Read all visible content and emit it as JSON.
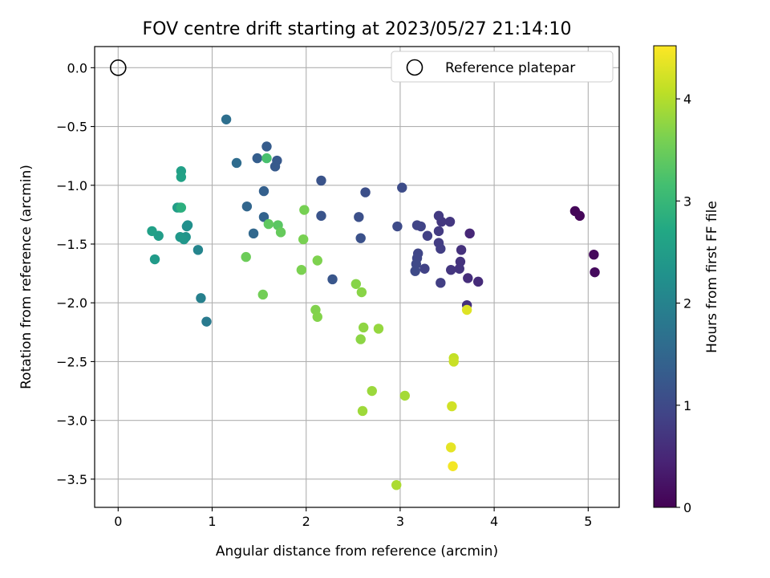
{
  "chart_data": {
    "type": "scatter",
    "title": "FOV centre drift starting at 2023/05/27 21:14:10",
    "xlabel": "Angular distance from reference (arcmin)",
    "ylabel": "Rotation from reference (arcmin)",
    "xlim": [
      -0.25,
      5.33
    ],
    "ylim": [
      -3.74,
      0.18
    ],
    "xticks": [
      0,
      1,
      2,
      3,
      4,
      5
    ],
    "yticks": [
      0.0,
      -0.5,
      -1.0,
      -1.5,
      -2.0,
      -2.5,
      -3.0,
      -3.5
    ],
    "xtick_labels": [
      "0",
      "1",
      "2",
      "3",
      "4",
      "5"
    ],
    "ytick_labels": [
      "0.0",
      "−0.5",
      "−1.0",
      "−1.5",
      "−2.0",
      "−2.5",
      "−3.0",
      "−3.5"
    ],
    "grid": true,
    "colormap": "viridis",
    "colorbar": {
      "label": "Hours from first FF file",
      "range": [
        0,
        4.52
      ],
      "ticks": [
        0,
        1,
        2,
        3,
        4
      ],
      "tick_labels": [
        "0",
        "1",
        "2",
        "3",
        "4"
      ]
    },
    "legend": {
      "position": "top-right",
      "entries": [
        {
          "label": "Reference platepar",
          "marker": "open-circle"
        }
      ]
    },
    "reference": {
      "x": 0,
      "y": 0
    },
    "points": [
      {
        "x": 4.86,
        "y": -1.22,
        "c": 0.05
      },
      {
        "x": 4.91,
        "y": -1.26,
        "c": 0.07
      },
      {
        "x": 5.06,
        "y": -1.59,
        "c": 0.1
      },
      {
        "x": 5.07,
        "y": -1.74,
        "c": 0.12
      },
      {
        "x": 3.74,
        "y": -1.41,
        "c": 0.5
      },
      {
        "x": 3.83,
        "y": -1.82,
        "c": 0.55
      },
      {
        "x": 3.72,
        "y": -1.79,
        "c": 0.6
      },
      {
        "x": 3.71,
        "y": -2.02,
        "c": 0.62
      },
      {
        "x": 3.65,
        "y": -1.55,
        "c": 0.64
      },
      {
        "x": 3.64,
        "y": -1.65,
        "c": 0.66
      },
      {
        "x": 3.63,
        "y": -1.71,
        "c": 0.68
      },
      {
        "x": 3.54,
        "y": -1.72,
        "c": 0.7
      },
      {
        "x": 3.53,
        "y": -1.31,
        "c": 0.72
      },
      {
        "x": 3.44,
        "y": -1.31,
        "c": 0.74
      },
      {
        "x": 3.41,
        "y": -1.26,
        "c": 0.76
      },
      {
        "x": 3.41,
        "y": -1.39,
        "c": 0.78
      },
      {
        "x": 3.41,
        "y": -1.49,
        "c": 0.8
      },
      {
        "x": 3.43,
        "y": -1.54,
        "c": 0.82
      },
      {
        "x": 3.43,
        "y": -1.83,
        "c": 0.84
      },
      {
        "x": 3.29,
        "y": -1.43,
        "c": 0.86
      },
      {
        "x": 3.26,
        "y": -1.71,
        "c": 0.88
      },
      {
        "x": 3.22,
        "y": -1.35,
        "c": 0.9
      },
      {
        "x": 3.18,
        "y": -1.34,
        "c": 0.92
      },
      {
        "x": 3.19,
        "y": -1.58,
        "c": 0.94
      },
      {
        "x": 3.18,
        "y": -1.62,
        "c": 0.96
      },
      {
        "x": 3.17,
        "y": -1.67,
        "c": 0.98
      },
      {
        "x": 3.16,
        "y": -1.73,
        "c": 1.0
      },
      {
        "x": 2.97,
        "y": -1.35,
        "c": 1.02
      },
      {
        "x": 3.02,
        "y": -1.02,
        "c": 1.04
      },
      {
        "x": 2.63,
        "y": -1.06,
        "c": 1.08
      },
      {
        "x": 2.56,
        "y": -1.27,
        "c": 1.1
      },
      {
        "x": 2.58,
        "y": -1.45,
        "c": 1.12
      },
      {
        "x": 2.16,
        "y": -0.96,
        "c": 1.16
      },
      {
        "x": 2.16,
        "y": -1.26,
        "c": 1.18
      },
      {
        "x": 2.28,
        "y": -1.8,
        "c": 1.2
      },
      {
        "x": 1.69,
        "y": -0.79,
        "c": 1.25
      },
      {
        "x": 1.67,
        "y": -0.84,
        "c": 1.28
      },
      {
        "x": 1.58,
        "y": -0.67,
        "c": 1.3
      },
      {
        "x": 1.48,
        "y": -0.77,
        "c": 1.34
      },
      {
        "x": 1.55,
        "y": -1.05,
        "c": 1.38
      },
      {
        "x": 1.55,
        "y": -1.27,
        "c": 1.42
      },
      {
        "x": 1.37,
        "y": -1.18,
        "c": 1.48
      },
      {
        "x": 1.44,
        "y": -1.41,
        "c": 1.52
      },
      {
        "x": 1.26,
        "y": -0.81,
        "c": 1.6
      },
      {
        "x": 1.15,
        "y": -0.44,
        "c": 1.65
      },
      {
        "x": 0.94,
        "y": -2.16,
        "c": 1.85
      },
      {
        "x": 0.88,
        "y": -1.96,
        "c": 1.95
      },
      {
        "x": 0.85,
        "y": -1.55,
        "c": 2.05
      },
      {
        "x": 0.73,
        "y": -1.35,
        "c": 2.2
      },
      {
        "x": 0.74,
        "y": -1.34,
        "c": 2.25
      },
      {
        "x": 0.72,
        "y": -1.44,
        "c": 2.3
      },
      {
        "x": 0.7,
        "y": -1.46,
        "c": 2.35
      },
      {
        "x": 0.66,
        "y": -1.44,
        "c": 2.4
      },
      {
        "x": 0.66,
        "y": -1.19,
        "c": 2.45
      },
      {
        "x": 0.63,
        "y": -1.19,
        "c": 2.5
      },
      {
        "x": 0.67,
        "y": -0.88,
        "c": 2.55
      },
      {
        "x": 0.67,
        "y": -0.93,
        "c": 2.6
      },
      {
        "x": 0.43,
        "y": -1.43,
        "c": 2.5
      },
      {
        "x": 0.36,
        "y": -1.39,
        "c": 2.55
      },
      {
        "x": 0.39,
        "y": -1.63,
        "c": 2.45
      },
      {
        "x": 0.67,
        "y": -1.19,
        "c": 2.85
      },
      {
        "x": 1.58,
        "y": -0.77,
        "c": 3.2
      },
      {
        "x": 1.7,
        "y": -1.34,
        "c": 3.35
      },
      {
        "x": 1.6,
        "y": -1.33,
        "c": 3.4
      },
      {
        "x": 1.73,
        "y": -1.4,
        "c": 3.45
      },
      {
        "x": 1.36,
        "y": -1.61,
        "c": 3.5
      },
      {
        "x": 1.54,
        "y": -1.93,
        "c": 3.55
      },
      {
        "x": 1.98,
        "y": -1.21,
        "c": 3.58
      },
      {
        "x": 1.97,
        "y": -1.46,
        "c": 3.6
      },
      {
        "x": 1.95,
        "y": -1.72,
        "c": 3.62
      },
      {
        "x": 2.12,
        "y": -1.64,
        "c": 3.64
      },
      {
        "x": 2.1,
        "y": -2.06,
        "c": 3.66
      },
      {
        "x": 2.12,
        "y": -2.12,
        "c": 3.68
      },
      {
        "x": 2.53,
        "y": -1.84,
        "c": 3.7
      },
      {
        "x": 2.59,
        "y": -1.91,
        "c": 3.72
      },
      {
        "x": 2.58,
        "y": -2.31,
        "c": 3.74
      },
      {
        "x": 2.61,
        "y": -2.21,
        "c": 3.76
      },
      {
        "x": 2.77,
        "y": -2.22,
        "c": 3.8
      },
      {
        "x": 2.7,
        "y": -2.75,
        "c": 3.84
      },
      {
        "x": 2.6,
        "y": -2.92,
        "c": 3.86
      },
      {
        "x": 3.05,
        "y": -2.79,
        "c": 3.9
      },
      {
        "x": 2.96,
        "y": -3.55,
        "c": 3.95
      },
      {
        "x": 3.57,
        "y": -2.47,
        "c": 4.1
      },
      {
        "x": 3.57,
        "y": -2.5,
        "c": 4.15
      },
      {
        "x": 3.55,
        "y": -2.88,
        "c": 4.2
      },
      {
        "x": 3.71,
        "y": -2.06,
        "c": 4.3
      },
      {
        "x": 3.54,
        "y": -3.23,
        "c": 4.35
      },
      {
        "x": 3.56,
        "y": -3.39,
        "c": 4.45
      }
    ]
  }
}
